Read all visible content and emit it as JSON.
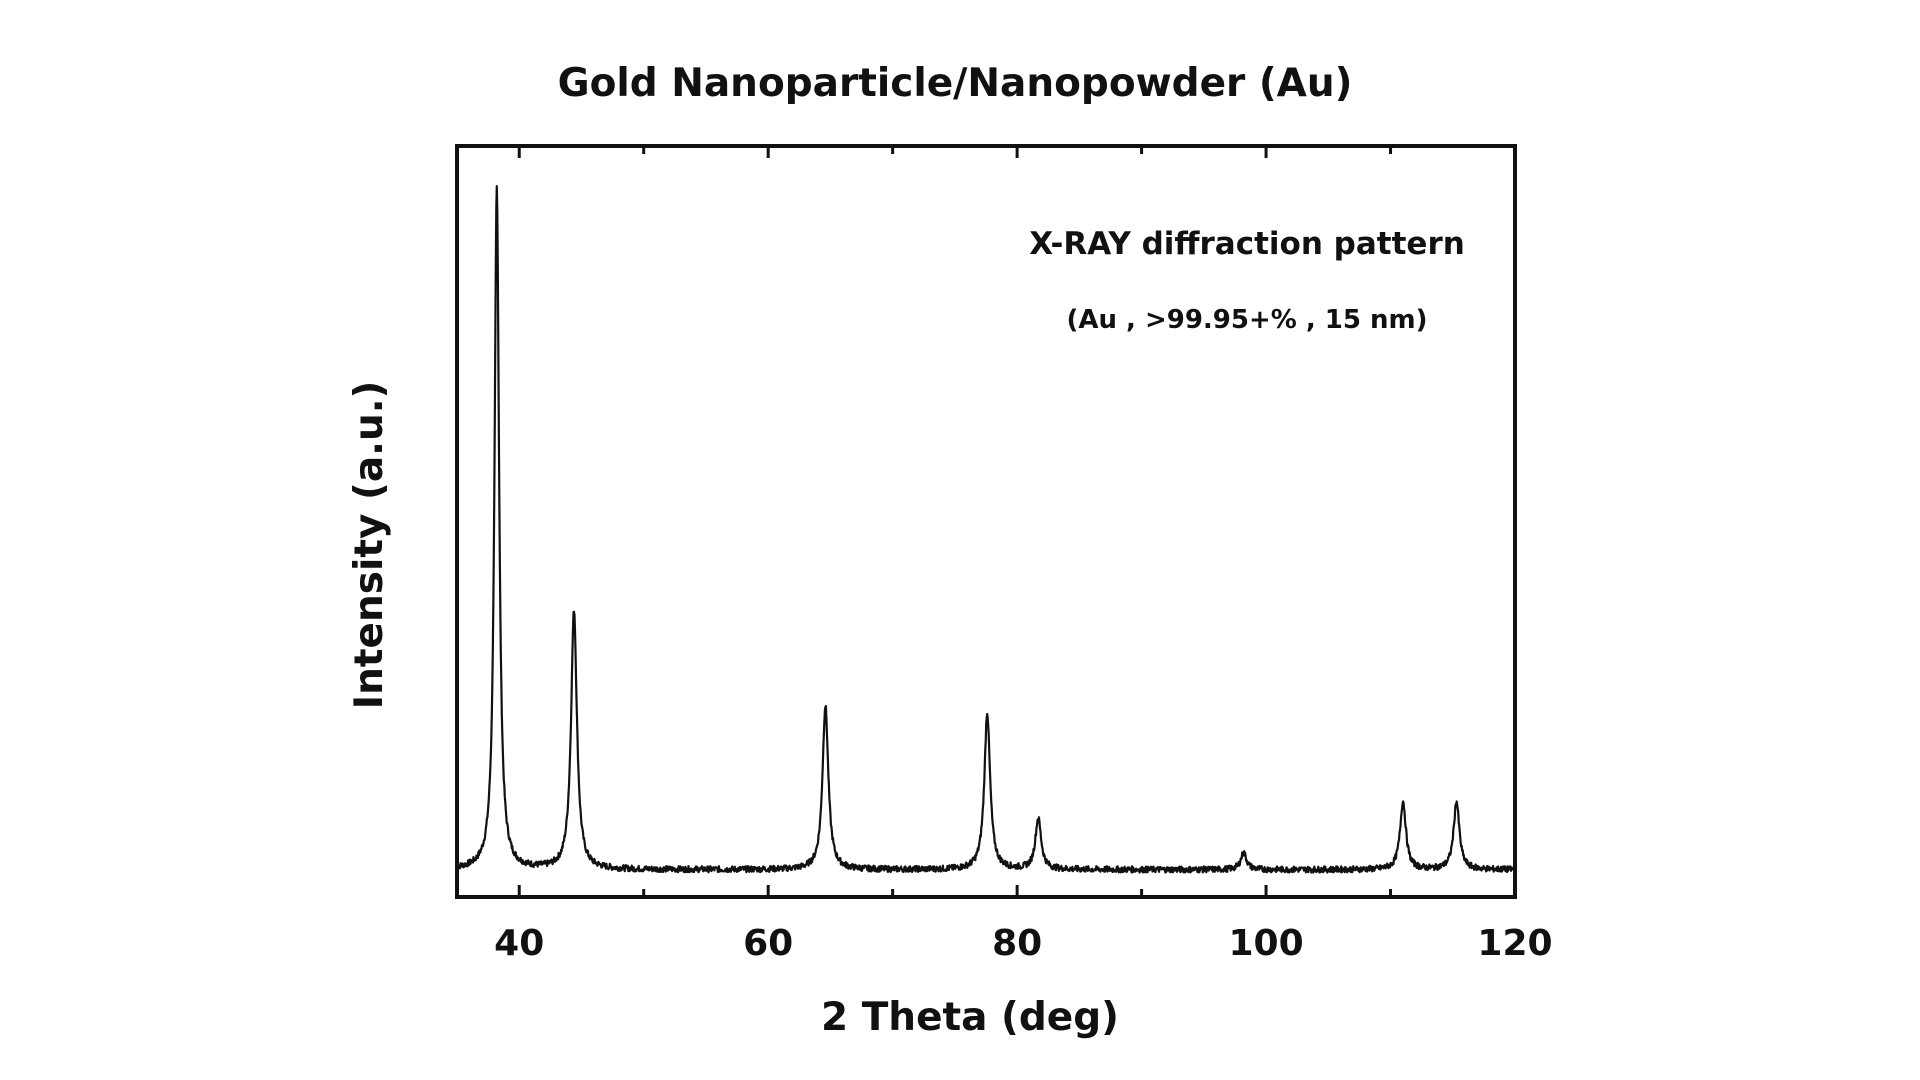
{
  "chart_data": {
    "type": "line",
    "title": "Gold Nanoparticle/Nanopowder (Au)",
    "xlabel": "2 Theta (deg)",
    "ylabel": "Intensity (a.u.)",
    "xlim": [
      35,
      120
    ],
    "ylim": [
      0,
      110
    ],
    "x_ticks": [
      40,
      60,
      80,
      100,
      120
    ],
    "x_minor_ticks": [
      50,
      70,
      90,
      110
    ],
    "y_ticks_shown": false,
    "grid": false,
    "annotations": [
      "X-RAY diffraction pattern",
      "(Au , >99.95+% , 15 nm)"
    ],
    "line_color": "#111111",
    "baseline": 4,
    "peaks": [
      {
        "x": 38.2,
        "height": 100
      },
      {
        "x": 44.4,
        "height": 38
      },
      {
        "x": 64.6,
        "height": 24
      },
      {
        "x": 77.6,
        "height": 23
      },
      {
        "x": 81.7,
        "height": 7.5
      },
      {
        "x": 98.2,
        "height": 2.5
      },
      {
        "x": 111.0,
        "height": 10
      },
      {
        "x": 115.3,
        "height": 10
      }
    ]
  }
}
